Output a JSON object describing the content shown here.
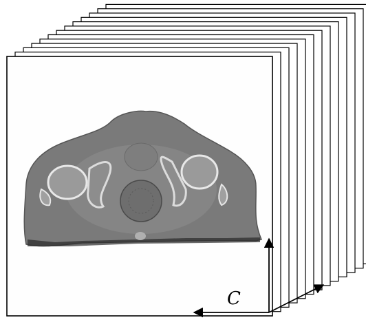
{
  "figure": {
    "axis_label": "C"
  }
}
